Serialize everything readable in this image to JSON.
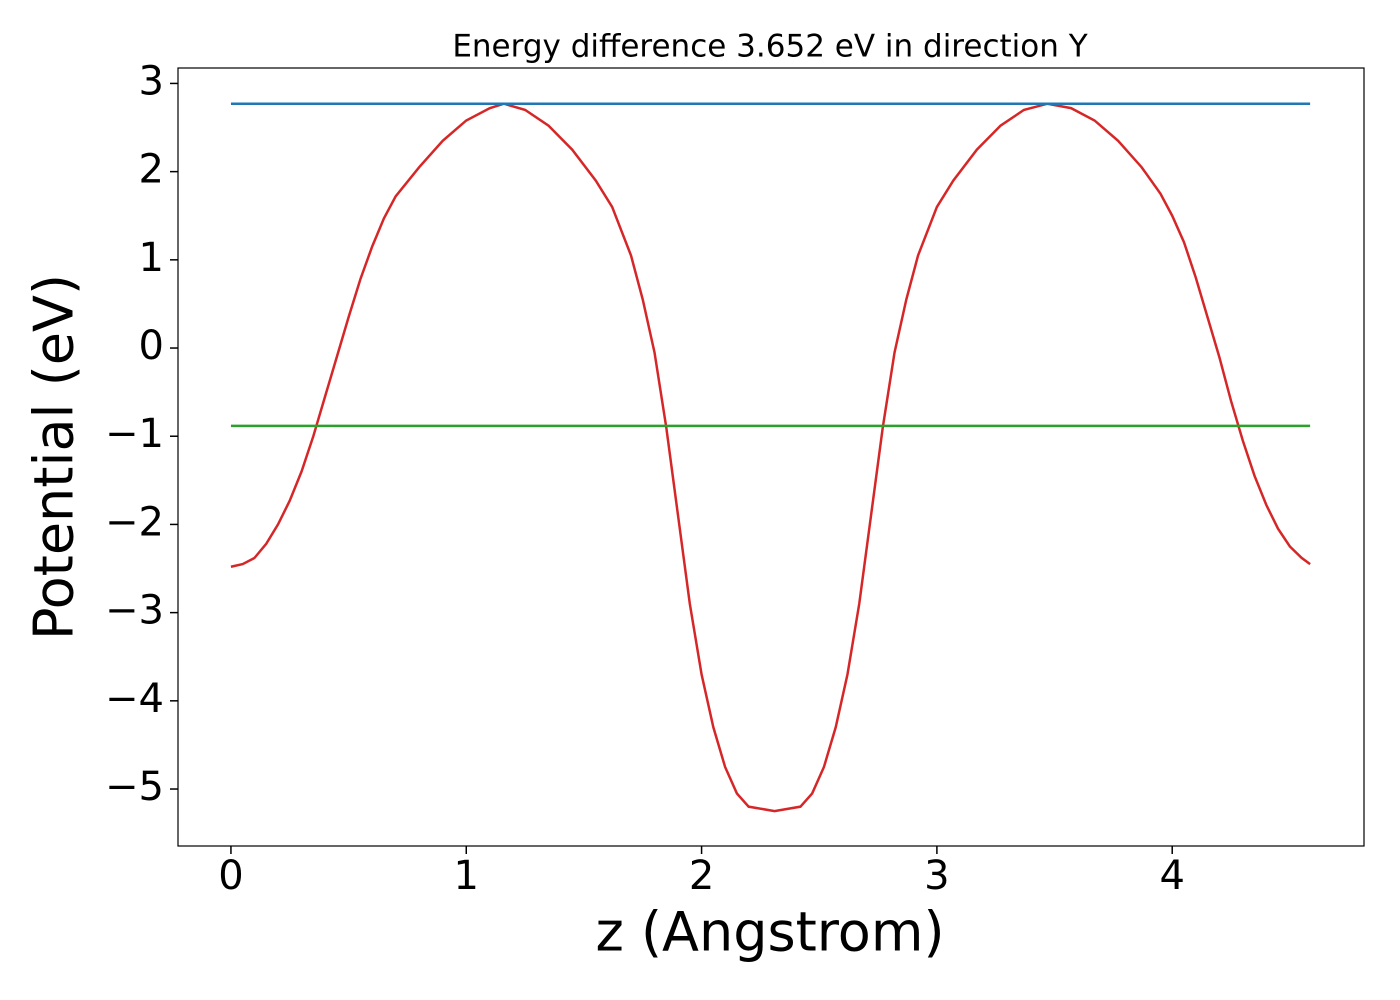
{
  "chart_data": {
    "type": "line",
    "title": "Energy difference 3.652 eV in direction Y",
    "xlabel": "z (Angstrom)",
    "ylabel": "Potential (eV)",
    "xlim": [
      -0.225,
      4.815
    ],
    "ylim": [
      -5.646,
      3.175
    ],
    "xticks": [
      0,
      1,
      2,
      3,
      4
    ],
    "yticks": [
      {
        "value": -5,
        "label": "−5"
      },
      {
        "value": -4,
        "label": "−4"
      },
      {
        "value": -3,
        "label": "−3"
      },
      {
        "value": -2,
        "label": "−2"
      },
      {
        "value": -1,
        "label": "−1"
      },
      0,
      1,
      2,
      3
    ],
    "grid": false,
    "series": [
      {
        "color": "#d62728",
        "x": [
          0,
          0.05,
          0.1,
          0.15,
          0.2,
          0.25,
          0.3,
          0.35,
          0.4,
          0.45,
          0.5,
          0.55,
          0.6,
          0.65,
          0.7,
          0.8,
          0.9,
          1.0,
          1.1,
          1.16,
          1.25,
          1.35,
          1.45,
          1.55,
          1.62,
          1.7,
          1.75,
          1.8,
          1.85,
          1.9,
          1.95,
          2.0,
          2.05,
          2.1,
          2.15,
          2.2,
          2.31,
          2.42,
          2.47,
          2.52,
          2.57,
          2.62,
          2.67,
          2.72,
          2.77,
          2.82,
          2.87,
          2.92,
          3.0,
          3.07,
          3.17,
          3.27,
          3.37,
          3.47,
          3.57,
          3.67,
          3.77,
          3.87,
          3.95,
          4.0,
          4.05,
          4.1,
          4.15,
          4.2,
          4.25,
          4.3,
          4.35,
          4.4,
          4.45,
          4.5,
          4.55,
          4.586
        ],
        "values": [
          -2.48,
          -2.45,
          -2.38,
          -2.22,
          -2.0,
          -1.73,
          -1.4,
          -1.0,
          -0.55,
          -0.1,
          0.35,
          0.78,
          1.15,
          1.47,
          1.72,
          2.05,
          2.35,
          2.58,
          2.72,
          2.77,
          2.7,
          2.52,
          2.25,
          1.9,
          1.6,
          1.05,
          0.55,
          -0.05,
          -0.9,
          -1.9,
          -2.9,
          -3.7,
          -4.3,
          -4.75,
          -5.05,
          -5.2,
          -5.25,
          -5.2,
          -5.05,
          -4.75,
          -4.3,
          -3.7,
          -2.9,
          -1.9,
          -0.9,
          -0.05,
          0.55,
          1.05,
          1.6,
          1.9,
          2.25,
          2.52,
          2.7,
          2.77,
          2.72,
          2.58,
          2.35,
          2.05,
          1.75,
          1.5,
          1.2,
          0.8,
          0.35,
          -0.1,
          -0.6,
          -1.05,
          -1.45,
          -1.78,
          -2.05,
          -2.25,
          -2.38,
          -2.45
        ]
      },
      {
        "color": "#1f77b4",
        "x": [
          0,
          4.586
        ],
        "values": [
          2.77,
          2.77
        ]
      },
      {
        "color": "#2ca02c",
        "x": [
          0,
          4.586
        ],
        "values": [
          -0.882,
          -0.882
        ]
      }
    ]
  }
}
